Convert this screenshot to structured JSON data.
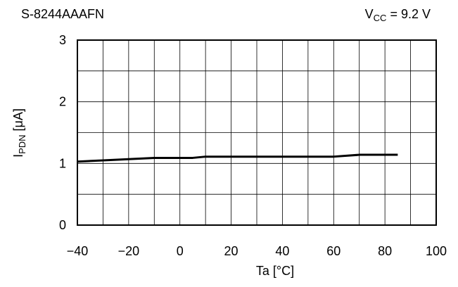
{
  "chart_data": {
    "type": "line",
    "title": "S-8244AAAFN",
    "condition": {
      "label_main": "V",
      "label_sub": "CC",
      "label_rest": " = 9.2 V"
    },
    "xlabel": "Ta [°C]",
    "ylabel": {
      "main": "I",
      "sub": "PDN",
      "rest": " [μA]"
    },
    "xlim": [
      -40,
      100
    ],
    "ylim": [
      0,
      3
    ],
    "x_ticks": [
      -40,
      -20,
      0,
      20,
      40,
      60,
      80,
      100
    ],
    "x_tick_labels": [
      "−40",
      "−20",
      "0",
      "20",
      "40",
      "60",
      "80",
      "100"
    ],
    "y_ticks": [
      0,
      1,
      2,
      3
    ],
    "y_tick_labels": [
      "0",
      "1",
      "2",
      "3"
    ],
    "x_grid_step": 10,
    "y_grid_step": 0.5,
    "grid": true,
    "series": [
      {
        "x": [
          -40,
          -30,
          -20,
          -10,
          0,
          5,
          10,
          20,
          30,
          40,
          50,
          60,
          70,
          80,
          85
        ],
        "y": [
          1.03,
          1.05,
          1.07,
          1.09,
          1.09,
          1.09,
          1.11,
          1.11,
          1.11,
          1.11,
          1.11,
          1.11,
          1.14,
          1.14,
          1.14
        ]
      }
    ]
  }
}
